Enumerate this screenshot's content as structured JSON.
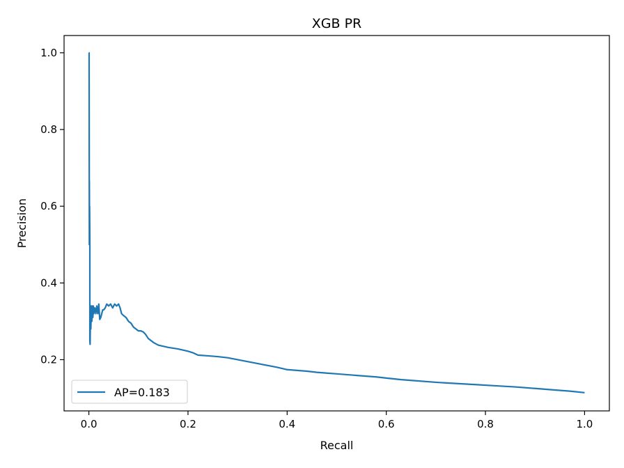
{
  "chart_data": {
    "type": "line",
    "title": "XGB PR",
    "xlabel": "Recall",
    "ylabel": "Precision",
    "xlim": [
      -0.05,
      1.05
    ],
    "ylim": [
      0.0665,
      1.045
    ],
    "x_ticks": [
      0.0,
      0.2,
      0.4,
      0.6,
      0.8,
      1.0
    ],
    "x_tick_labels": [
      "0.0",
      "0.2",
      "0.4",
      "0.6",
      "0.8",
      "1.0"
    ],
    "y_ticks": [
      0.2,
      0.4,
      0.6,
      0.8,
      1.0
    ],
    "y_tick_labels": [
      "0.2",
      "0.4",
      "0.6",
      "0.8",
      "1.0"
    ],
    "grid": false,
    "legend_position": "lower-left",
    "series": [
      {
        "name": "AP=0.183",
        "color": "#1f77b4",
        "x": [
          0.0,
          0.0005,
          0.001,
          0.001,
          0.0015,
          0.0015,
          0.002,
          0.002,
          0.0025,
          0.003,
          0.003,
          0.004,
          0.005,
          0.006,
          0.007,
          0.008,
          0.009,
          0.01,
          0.012,
          0.014,
          0.016,
          0.018,
          0.02,
          0.022,
          0.024,
          0.026,
          0.028,
          0.03,
          0.033,
          0.036,
          0.04,
          0.044,
          0.048,
          0.052,
          0.056,
          0.06,
          0.063,
          0.066,
          0.07,
          0.075,
          0.08,
          0.085,
          0.09,
          0.095,
          0.1,
          0.105,
          0.11,
          0.115,
          0.12,
          0.13,
          0.14,
          0.15,
          0.16,
          0.17,
          0.18,
          0.19,
          0.2,
          0.21,
          0.22,
          0.24,
          0.26,
          0.28,
          0.3,
          0.32,
          0.34,
          0.36,
          0.38,
          0.4,
          0.42,
          0.44,
          0.46,
          0.48,
          0.5,
          0.52,
          0.55,
          0.58,
          0.6,
          0.63,
          0.66,
          0.7,
          0.74,
          0.78,
          0.82,
          0.86,
          0.9,
          0.94,
          0.97,
          1.0
        ],
        "y": [
          1.0,
          1.0,
          0.5,
          0.667,
          0.5,
          0.6,
          0.5,
          0.25,
          0.24,
          0.3,
          0.34,
          0.28,
          0.34,
          0.3,
          0.34,
          0.31,
          0.34,
          0.32,
          0.335,
          0.32,
          0.34,
          0.32,
          0.345,
          0.305,
          0.31,
          0.32,
          0.33,
          0.33,
          0.335,
          0.345,
          0.34,
          0.345,
          0.335,
          0.345,
          0.34,
          0.345,
          0.335,
          0.32,
          0.315,
          0.31,
          0.3,
          0.295,
          0.285,
          0.28,
          0.275,
          0.275,
          0.272,
          0.265,
          0.255,
          0.245,
          0.238,
          0.235,
          0.232,
          0.23,
          0.228,
          0.225,
          0.222,
          0.218,
          0.212,
          0.21,
          0.208,
          0.205,
          0.2,
          0.195,
          0.19,
          0.185,
          0.18,
          0.174,
          0.172,
          0.17,
          0.167,
          0.165,
          0.163,
          0.161,
          0.158,
          0.155,
          0.152,
          0.148,
          0.145,
          0.141,
          0.138,
          0.135,
          0.132,
          0.129,
          0.125,
          0.121,
          0.118,
          0.114
        ]
      }
    ]
  }
}
